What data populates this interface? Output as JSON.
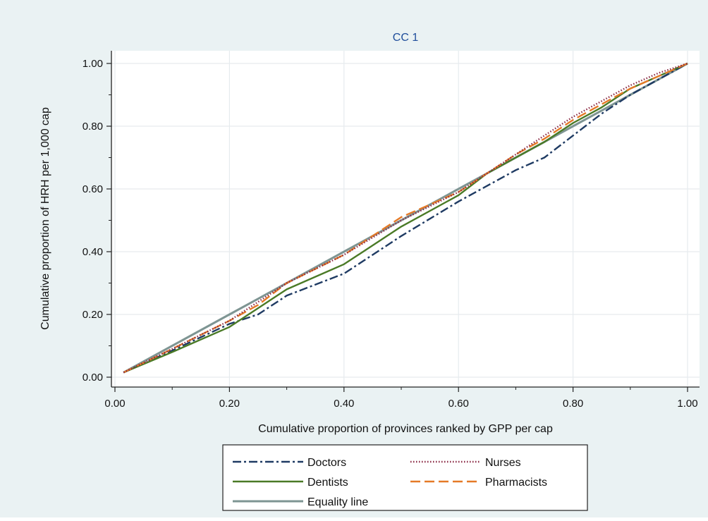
{
  "chart_data": {
    "type": "line",
    "title": "CC 1",
    "xlabel": "Cumulative proportion of provinces ranked by GPP per cap",
    "ylabel": "Cumulative proportion of HRH per 1,000 cap",
    "xlim": [
      0,
      1
    ],
    "ylim": [
      0,
      1
    ],
    "x_ticks": [
      "0.00",
      "0.20",
      "0.40",
      "0.60",
      "0.80",
      "1.00"
    ],
    "y_ticks": [
      "0.00",
      "0.20",
      "0.40",
      "0.60",
      "0.80",
      "1.00"
    ],
    "grid": true,
    "legend_position": "bottom",
    "colors": {
      "background": "#eaf2f3",
      "plot_background": "#ffffff",
      "title": "#1f4e9b",
      "grid": "#e6ebee"
    },
    "x": [
      0.015,
      0.1,
      0.2,
      0.25,
      0.3,
      0.4,
      0.5,
      0.6,
      0.65,
      0.7,
      0.75,
      0.8,
      0.85,
      0.9,
      0.95,
      1.0
    ],
    "series": [
      {
        "name": "Doctors",
        "color": "#1f3b63",
        "dash": "12 4 3 4",
        "values": [
          0.015,
          0.085,
          0.17,
          0.2,
          0.26,
          0.33,
          0.45,
          0.56,
          0.61,
          0.66,
          0.7,
          0.77,
          0.84,
          0.9,
          0.95,
          1.0
        ]
      },
      {
        "name": "Nurses",
        "color": "#8b2a45",
        "dash": "1.5 2.5",
        "values": [
          0.015,
          0.09,
          0.18,
          0.24,
          0.3,
          0.39,
          0.5,
          0.59,
          0.65,
          0.71,
          0.77,
          0.83,
          0.88,
          0.93,
          0.97,
          1.0
        ]
      },
      {
        "name": "Dentists",
        "color": "#4a7a26",
        "dash": "",
        "values": [
          0.015,
          0.08,
          0.16,
          0.22,
          0.28,
          0.36,
          0.48,
          0.58,
          0.65,
          0.7,
          0.75,
          0.81,
          0.86,
          0.92,
          0.96,
          1.0
        ]
      },
      {
        "name": "Pharmacists",
        "color": "#e57a27",
        "dash": "14 6",
        "values": [
          0.015,
          0.09,
          0.18,
          0.23,
          0.3,
          0.39,
          0.51,
          0.59,
          0.65,
          0.71,
          0.76,
          0.82,
          0.87,
          0.92,
          0.96,
          1.0
        ]
      },
      {
        "name": "Equality line",
        "color": "#7e9593",
        "dash": "",
        "values": [
          0.015,
          0.1,
          0.2,
          0.25,
          0.3,
          0.4,
          0.5,
          0.6,
          0.65,
          0.7,
          0.75,
          0.8,
          0.85,
          0.9,
          0.95,
          1.0
        ]
      }
    ]
  }
}
